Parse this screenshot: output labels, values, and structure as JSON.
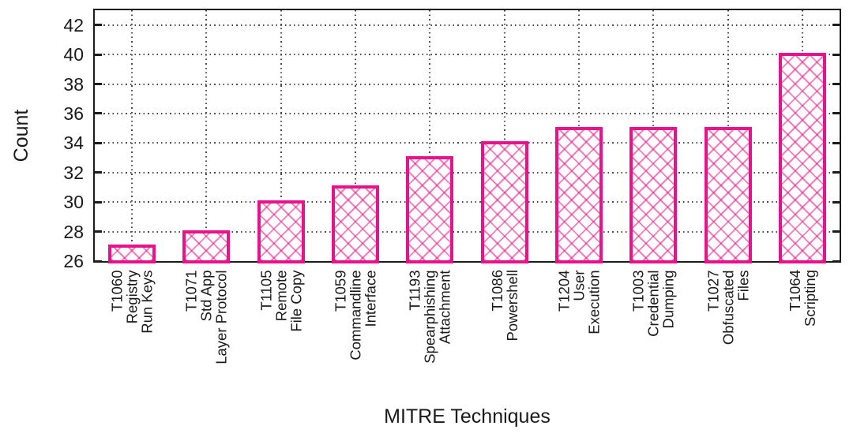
{
  "chart_data": {
    "type": "bar",
    "title": "",
    "xlabel": "MITRE Techniques",
    "ylabel": "Count",
    "categories": [
      "T1060\nRegistry\nRun Keys",
      "T1071\nStd App\nLayer Protocol",
      "T1105\nRemote\nFile Copy",
      "T1059\nCommandline\nInterface",
      "T1193\nSpearphishing\nAttachment",
      "T1086\nPowershell",
      "T1204\nUser\nExecution",
      "T1003\nCredential\nDumping",
      "T1027\nObfuscated\nFiles",
      "T1064\nScripting"
    ],
    "values": [
      27,
      28,
      30,
      31,
      33,
      34,
      35,
      35,
      35,
      40
    ],
    "ylim": [
      26,
      43
    ],
    "yticks": [
      26,
      28,
      30,
      32,
      34,
      36,
      38,
      40,
      42
    ],
    "grid": "dotted-both-axes",
    "legend": "none",
    "bar_border_color": "#e8138a",
    "bar_fill_pattern": "crosshatch",
    "axis_color": "#1c1c1c",
    "text_color": "#1a1a1a"
  }
}
